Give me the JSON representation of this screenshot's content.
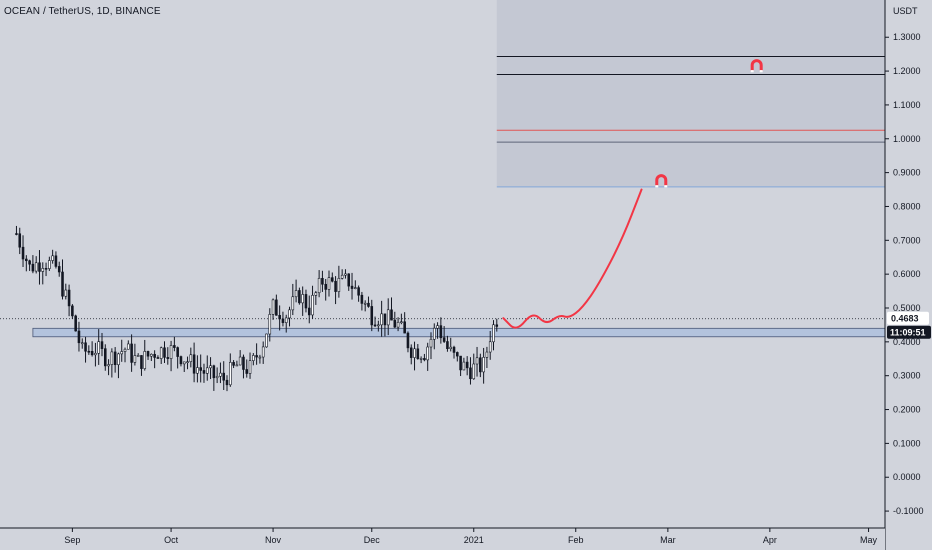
{
  "chart_data": {
    "type": "candlestick",
    "title": "OCEAN / TetherUS, 1D, BINANCE",
    "ylabel": "USDT",
    "ylim": [
      -0.15,
      1.41
    ],
    "y_ticks": [
      "1.3000",
      "1.2000",
      "1.1000",
      "1.0000",
      "0.9000",
      "0.8000",
      "0.7000",
      "0.6000",
      "0.5000",
      "0.4000",
      "0.3000",
      "0.2000",
      "0.1000",
      "0.0000",
      "-0.1000"
    ],
    "y_tick_values": [
      1.3,
      1.2,
      1.1,
      1.0,
      0.9,
      0.8,
      0.7,
      0.6,
      0.5,
      0.4,
      0.3,
      0.2,
      0.1,
      0.0,
      -0.1
    ],
    "x_labels": [
      "Sep",
      "Oct",
      "Nov",
      "Dec",
      "2021",
      "Feb",
      "Mar",
      "Apr",
      "May"
    ],
    "x_label_dates": [
      "2020-09-01",
      "2020-10-01",
      "2020-11-01",
      "2020-12-01",
      "2021-01-01",
      "2021-02-01",
      "2021-03-01",
      "2021-04-01",
      "2021-05-01"
    ],
    "x_range": [
      "2020-08-10",
      "2021-05-06"
    ],
    "last_price": "0.4683",
    "countdown": "11:09:51",
    "support_zone": {
      "from_date": "2020-08-20",
      "low": 0.415,
      "high": 0.44
    },
    "target_box": {
      "from_date": "2021-01-08",
      "low": 0.86,
      "high": 1.41
    },
    "levels": [
      {
        "value": 1.243,
        "color": "#131722"
      },
      {
        "value": 1.19,
        "color": "#131722"
      },
      {
        "value": 1.025,
        "color": "#e05555"
      },
      {
        "value": 0.99,
        "color": "#5d6479"
      },
      {
        "value": 0.858,
        "color": "#7fa3d6"
      }
    ],
    "magnets": [
      {
        "date": "2021-03-28",
        "value": 1.2
      },
      {
        "date": "2021-02-27",
        "value": 0.86
      }
    ],
    "projection": {
      "color": "#f23645",
      "points": [
        [
          "2021-01-10",
          0.47
        ],
        [
          "2021-01-14",
          0.43
        ],
        [
          "2021-01-19",
          0.49
        ],
        [
          "2021-01-23",
          0.45
        ],
        [
          "2021-01-27",
          0.48
        ],
        [
          "2021-01-30",
          0.47
        ],
        [
          "2021-02-03",
          0.5
        ],
        [
          "2021-02-08",
          0.57
        ],
        [
          "2021-02-15",
          0.7
        ],
        [
          "2021-02-21",
          0.85
        ]
      ]
    },
    "anchors": [
      [
        "2020-08-15",
        0.72
      ],
      [
        "2020-08-19",
        0.62
      ],
      [
        "2020-08-23",
        0.64
      ],
      [
        "2020-08-27",
        0.62
      ],
      [
        "2020-08-31",
        0.5
      ],
      [
        "2020-09-04",
        0.37
      ],
      [
        "2020-09-08",
        0.38
      ],
      [
        "2020-09-12",
        0.35
      ],
      [
        "2020-09-17",
        0.38
      ],
      [
        "2020-09-21",
        0.34
      ],
      [
        "2020-09-26",
        0.37
      ],
      [
        "2020-09-30",
        0.38
      ],
      [
        "2020-10-04",
        0.36
      ],
      [
        "2020-10-08",
        0.33
      ],
      [
        "2020-10-13",
        0.3
      ],
      [
        "2020-10-17",
        0.29
      ],
      [
        "2020-10-21",
        0.33
      ],
      [
        "2020-10-25",
        0.32
      ],
      [
        "2020-10-29",
        0.4
      ],
      [
        "2020-11-01",
        0.5
      ],
      [
        "2020-11-05",
        0.48
      ],
      [
        "2020-11-09",
        0.54
      ],
      [
        "2020-11-12",
        0.5
      ],
      [
        "2020-11-16",
        0.58
      ],
      [
        "2020-11-20",
        0.57
      ],
      [
        "2020-11-24",
        0.58
      ],
      [
        "2020-11-27",
        0.54
      ],
      [
        "2020-12-01",
        0.48
      ],
      [
        "2020-12-05",
        0.47
      ],
      [
        "2020-12-09",
        0.45
      ],
      [
        "2020-12-13",
        0.38
      ],
      [
        "2020-12-17",
        0.37
      ],
      [
        "2020-12-21",
        0.45
      ],
      [
        "2020-12-24",
        0.38
      ],
      [
        "2020-12-28",
        0.33
      ],
      [
        "2020-12-31",
        0.32
      ],
      [
        "2021-01-04",
        0.33
      ],
      [
        "2021-01-06",
        0.42
      ],
      [
        "2021-01-08",
        0.47
      ]
    ]
  }
}
